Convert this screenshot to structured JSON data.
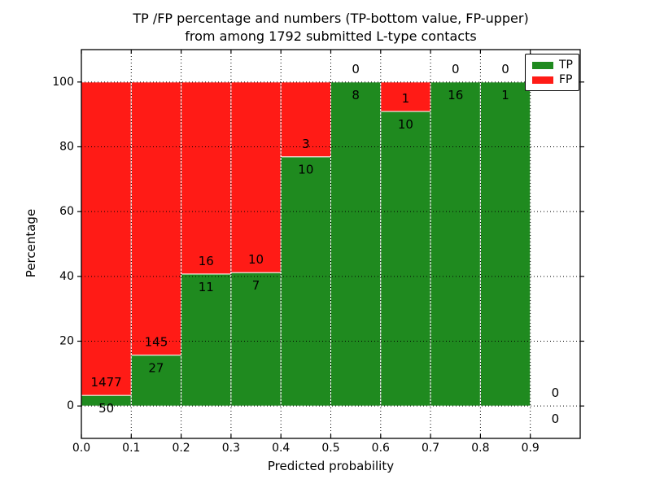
{
  "chart_data": {
    "type": "bar",
    "stacked": true,
    "percentage": true,
    "title_line1": "TP /FP percentage and numbers (TP-bottom value, FP-upper)",
    "title_line2": "from among 1792 submitted L-type contacts",
    "xlabel": "Predicted probability",
    "ylabel": "Percentage",
    "total_submitted": 1792,
    "xlim": [
      0.0,
      1.0
    ],
    "ylim": [
      -10,
      110
    ],
    "xtick_labels": [
      "0.0",
      "0.1",
      "0.2",
      "0.3",
      "0.4",
      "0.5",
      "0.6",
      "0.7",
      "0.8",
      "0.9"
    ],
    "ytick_values": [
      0,
      20,
      40,
      60,
      80,
      100
    ],
    "grid": "dotted",
    "grid_color": "#000000",
    "bar_edge_color": "#ffffff",
    "colors": {
      "tp": "#1f8a1f",
      "fp": "#ff1b16"
    },
    "legend": {
      "position": "upper-right",
      "entries": [
        {
          "label": "TP",
          "key": "tp",
          "color": "#1f8a1f"
        },
        {
          "label": "FP",
          "key": "fp",
          "color": "#ff1b16"
        }
      ]
    },
    "bins": [
      {
        "x0": 0.0,
        "x1": 0.1,
        "tp": 50,
        "fp": 1477
      },
      {
        "x0": 0.1,
        "x1": 0.2,
        "tp": 27,
        "fp": 145
      },
      {
        "x0": 0.2,
        "x1": 0.3,
        "tp": 11,
        "fp": 16
      },
      {
        "x0": 0.3,
        "x1": 0.4,
        "tp": 7,
        "fp": 10
      },
      {
        "x0": 0.4,
        "x1": 0.5,
        "tp": 10,
        "fp": 3
      },
      {
        "x0": 0.5,
        "x1": 0.6,
        "tp": 8,
        "fp": 0
      },
      {
        "x0": 0.6,
        "x1": 0.7,
        "tp": 10,
        "fp": 1
      },
      {
        "x0": 0.7,
        "x1": 0.8,
        "tp": 16,
        "fp": 0
      },
      {
        "x0": 0.8,
        "x1": 0.9,
        "tp": 1,
        "fp": 0
      },
      {
        "x0": 0.9,
        "x1": 1.0,
        "tp": 0,
        "fp": 0
      }
    ]
  }
}
